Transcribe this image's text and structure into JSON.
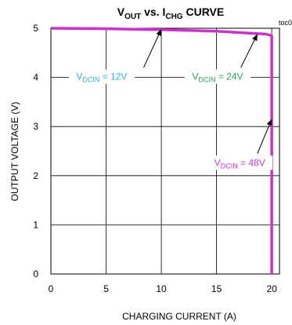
{
  "chart_data": {
    "type": "line",
    "title": {
      "main": "V",
      "sub1": "OUT",
      "mid": " vs. I",
      "sub2": "CHG",
      "end": " CURVE"
    },
    "tag": "toc0",
    "xlabel": "CHARGING CURRENT (A)",
    "ylabel": "OUTPUT VOLTAGE (V)",
    "xlim": [
      0,
      20.7
    ],
    "ylim": [
      0,
      5
    ],
    "xticks": [
      "0",
      "5",
      "10",
      "15",
      "20"
    ],
    "yticks": [
      "0",
      "1",
      "2",
      "3",
      "4",
      "5"
    ],
    "grid": true,
    "series": [
      {
        "color": "#cc33cc",
        "x": [
          0,
          5,
          10,
          15,
          18,
          19.5,
          20,
          20,
          20
        ],
        "y": [
          5.0,
          4.99,
          4.97,
          4.94,
          4.9,
          4.88,
          4.85,
          3.0,
          0.0
        ]
      }
    ],
    "annotations": [
      {
        "label_main": "V",
        "label_sub": "DCIN",
        "label_end": " = 12V",
        "color": "#29b6e6",
        "text_at": [
          4.6,
          3.95
        ],
        "arrow_from": [
          8.4,
          4.2
        ],
        "arrow_to": [
          10.0,
          4.98
        ]
      },
      {
        "label_main": "V",
        "label_sub": "DCIN",
        "label_end": " = 24V",
        "color": "#1fa85a",
        "text_at": [
          15.1,
          3.95
        ],
        "arrow_from": [
          17.2,
          4.2
        ],
        "arrow_to": [
          18.7,
          4.88
        ]
      },
      {
        "label_main": "V",
        "label_sub": "DCIN",
        "label_end": " = 48V",
        "color": "#cc33cc",
        "text_at": [
          17.1,
          2.2
        ],
        "arrow_from": [
          18.7,
          2.45
        ],
        "arrow_to": [
          20.0,
          3.15
        ]
      }
    ]
  }
}
